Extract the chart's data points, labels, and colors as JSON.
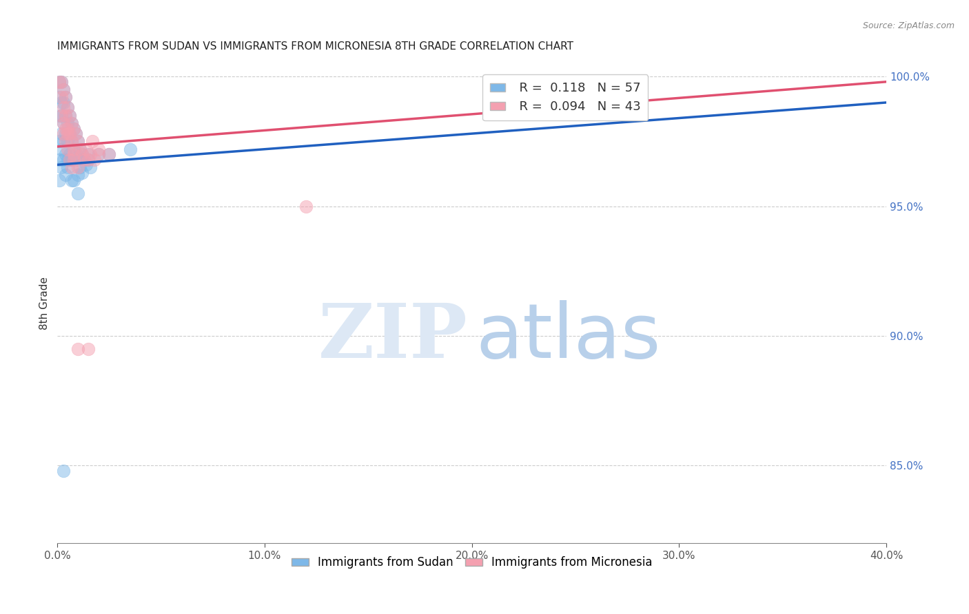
{
  "title": "IMMIGRANTS FROM SUDAN VS IMMIGRANTS FROM MICRONESIA 8TH GRADE CORRELATION CHART",
  "source": "Source: ZipAtlas.com",
  "ylabel": "8th Grade",
  "xlim": [
    0.0,
    0.4
  ],
  "ylim": [
    0.82,
    1.005
  ],
  "xtick_labels": [
    "0.0%",
    "10.0%",
    "20.0%",
    "30.0%",
    "40.0%"
  ],
  "xtick_values": [
    0.0,
    0.1,
    0.2,
    0.3,
    0.4
  ],
  "ytick_labels_right": [
    "85.0%",
    "90.0%",
    "95.0%",
    "100.0%"
  ],
  "ytick_values_right": [
    0.85,
    0.9,
    0.95,
    1.0
  ],
  "legend_R_sudan": "0.118",
  "legend_N_sudan": "57",
  "legend_R_micronesia": "0.094",
  "legend_N_micronesia": "43",
  "color_sudan": "#7EB8E8",
  "color_micronesia": "#F4A0B0",
  "color_trend_sudan": "#2060C0",
  "color_trend_micronesia": "#E05070",
  "sudan_trend_x": [
    0.0,
    0.4
  ],
  "sudan_trend_y": [
    0.966,
    0.99
  ],
  "micronesia_trend_x": [
    0.0,
    0.4
  ],
  "micronesia_trend_y": [
    0.973,
    0.998
  ],
  "sudan_x": [
    0.001,
    0.001,
    0.001,
    0.002,
    0.002,
    0.002,
    0.002,
    0.003,
    0.003,
    0.003,
    0.003,
    0.004,
    0.004,
    0.004,
    0.004,
    0.005,
    0.005,
    0.005,
    0.005,
    0.006,
    0.006,
    0.006,
    0.007,
    0.007,
    0.007,
    0.008,
    0.008,
    0.009,
    0.009,
    0.01,
    0.01,
    0.01,
    0.011,
    0.011,
    0.012,
    0.012,
    0.013,
    0.014,
    0.015,
    0.016,
    0.001,
    0.001,
    0.001,
    0.002,
    0.002,
    0.003,
    0.004,
    0.005,
    0.006,
    0.007,
    0.02,
    0.035,
    0.01,
    0.008,
    0.015,
    0.025,
    0.003
  ],
  "sudan_y": [
    0.998,
    0.992,
    0.985,
    0.998,
    0.99,
    0.985,
    0.978,
    0.995,
    0.99,
    0.982,
    0.975,
    0.992,
    0.985,
    0.978,
    0.97,
    0.988,
    0.982,
    0.975,
    0.968,
    0.985,
    0.978,
    0.97,
    0.982,
    0.975,
    0.968,
    0.98,
    0.972,
    0.978,
    0.97,
    0.975,
    0.968,
    0.962,
    0.972,
    0.965,
    0.97,
    0.963,
    0.968,
    0.966,
    0.97,
    0.965,
    0.975,
    0.968,
    0.96,
    0.972,
    0.965,
    0.968,
    0.962,
    0.965,
    0.968,
    0.96,
    0.97,
    0.972,
    0.955,
    0.96,
    0.968,
    0.97,
    0.848
  ],
  "micronesia_x": [
    0.001,
    0.002,
    0.002,
    0.003,
    0.003,
    0.004,
    0.004,
    0.005,
    0.005,
    0.006,
    0.006,
    0.007,
    0.007,
    0.008,
    0.008,
    0.009,
    0.01,
    0.011,
    0.012,
    0.013,
    0.014,
    0.015,
    0.016,
    0.017,
    0.018,
    0.02,
    0.003,
    0.004,
    0.005,
    0.006,
    0.007,
    0.008,
    0.002,
    0.003,
    0.004,
    0.005,
    0.12,
    0.02,
    0.025,
    0.01,
    0.01,
    0.015,
    0.008
  ],
  "micronesia_y": [
    0.998,
    0.998,
    0.992,
    0.995,
    0.988,
    0.992,
    0.985,
    0.988,
    0.98,
    0.985,
    0.978,
    0.982,
    0.975,
    0.98,
    0.972,
    0.978,
    0.975,
    0.972,
    0.97,
    0.968,
    0.972,
    0.968,
    0.97,
    0.975,
    0.968,
    0.97,
    0.978,
    0.975,
    0.972,
    0.968,
    0.965,
    0.968,
    0.985,
    0.982,
    0.98,
    0.978,
    0.95,
    0.972,
    0.97,
    0.965,
    0.895,
    0.895,
    0.97
  ]
}
